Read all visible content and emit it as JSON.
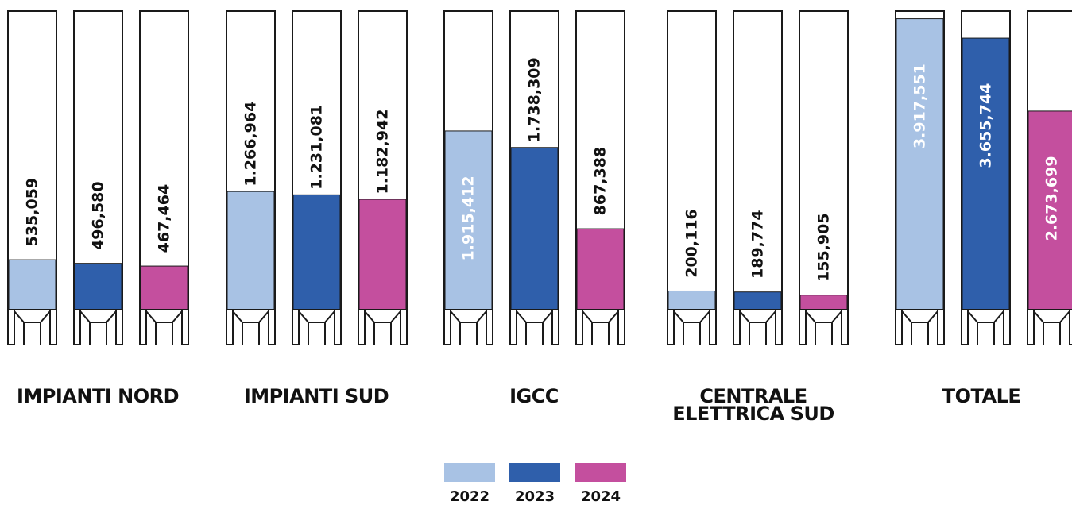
{
  "chart_data": {
    "type": "bar",
    "groups": [
      {
        "name": "IMPIANTI NORD",
        "values": [
          535059,
          496580,
          467464
        ],
        "labels": [
          "535,059",
          "496,580",
          "467,464"
        ]
      },
      {
        "name": "IMPIANTI SUD",
        "values": [
          1266964,
          1231081,
          1182942
        ],
        "labels": [
          "1.266,964",
          "1.231,081",
          "1.182,942"
        ]
      },
      {
        "name": "IGCC",
        "values": [
          1915412,
          1738309,
          867388
        ],
        "labels": [
          "1.915,412",
          "1.738,309",
          "867,388"
        ]
      },
      {
        "name": "CENTRALE\nELETTRICA SUD",
        "values": [
          200116,
          189774,
          155905
        ],
        "labels": [
          "200,116",
          "189,774",
          "155,905"
        ]
      },
      {
        "name": "TOTALE",
        "values": [
          3917551,
          3655744,
          2673699
        ],
        "labels": [
          "3.917,551",
          "3.655,744",
          "2.673,699"
        ]
      }
    ],
    "series": [
      {
        "name": "2022",
        "color": "#a8c2e4"
      },
      {
        "name": "2023",
        "color": "#2f5fab"
      },
      {
        "name": "2024",
        "color": "#c44f9e"
      }
    ],
    "scales": [
      {
        "groups": [
          0,
          1,
          2,
          3
        ],
        "max": 3200000
      },
      {
        "groups": [
          4
        ],
        "max": 4020000
      }
    ],
    "grid": false,
    "legend_position": "bottom"
  }
}
